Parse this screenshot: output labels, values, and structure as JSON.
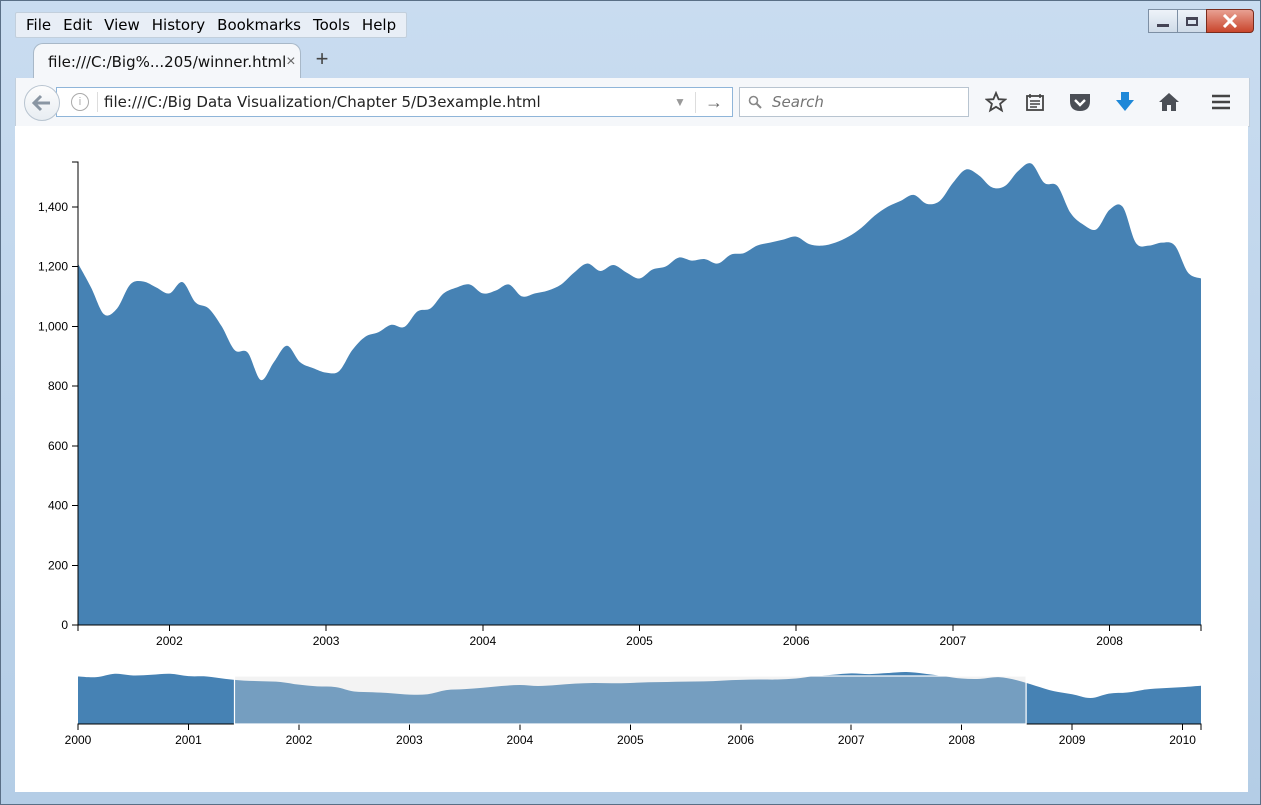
{
  "menu": [
    "File",
    "Edit",
    "View",
    "History",
    "Bookmarks",
    "Tools",
    "Help"
  ],
  "tab": {
    "title": "file:///C:/Big%...205/winner.html",
    "close": "×",
    "new": "+"
  },
  "nav": {
    "url": "file:///C:/Big Data Visualization/Chapter 5/D3example.html",
    "search_placeholder": "Search"
  },
  "colors": {
    "area": "#4682b4",
    "brush": "#d9d9d9"
  },
  "icons": [
    "back-arrow-icon",
    "info-icon",
    "dropdown-icon",
    "go-arrow-icon",
    "search-icon",
    "star-icon",
    "reading-list-icon",
    "pocket-icon",
    "download-icon",
    "home-icon",
    "menu-icon"
  ],
  "chart_data": [
    {
      "type": "area",
      "title": "",
      "xlabel": "",
      "ylabel": "",
      "xlim": [
        "2001-06",
        "2008-08"
      ],
      "ylim": [
        0,
        1550
      ],
      "y_ticks": [
        0,
        200,
        400,
        600,
        800,
        1000,
        1200,
        1400
      ],
      "y_tick_labels": [
        "0",
        "200",
        "400",
        "600",
        "800",
        "1,000",
        "1,200",
        "1,400"
      ],
      "x_tick_labels": [
        "2002",
        "2003",
        "2004",
        "2005",
        "2006",
        "2007",
        "2008"
      ],
      "x": [
        "2001-06",
        "2001-07",
        "2001-08",
        "2001-09",
        "2001-10",
        "2001-11",
        "2001-12",
        "2002-01",
        "2002-02",
        "2002-03",
        "2002-04",
        "2002-05",
        "2002-06",
        "2002-07",
        "2002-08",
        "2002-09",
        "2002-10",
        "2002-11",
        "2002-12",
        "2003-01",
        "2003-02",
        "2003-03",
        "2003-04",
        "2003-05",
        "2003-06",
        "2003-07",
        "2003-08",
        "2003-09",
        "2003-10",
        "2003-11",
        "2003-12",
        "2004-01",
        "2004-02",
        "2004-03",
        "2004-04",
        "2004-05",
        "2004-06",
        "2004-07",
        "2004-08",
        "2004-09",
        "2004-10",
        "2004-11",
        "2004-12",
        "2005-01",
        "2005-02",
        "2005-03",
        "2005-04",
        "2005-05",
        "2005-06",
        "2005-07",
        "2005-08",
        "2005-09",
        "2005-10",
        "2005-11",
        "2005-12",
        "2006-01",
        "2006-02",
        "2006-03",
        "2006-04",
        "2006-05",
        "2006-06",
        "2006-07",
        "2006-08",
        "2006-09",
        "2006-10",
        "2006-11",
        "2006-12",
        "2007-01",
        "2007-02",
        "2007-03",
        "2007-04",
        "2007-05",
        "2007-06",
        "2007-07",
        "2007-08",
        "2007-09",
        "2007-10",
        "2007-11",
        "2007-12",
        "2008-01",
        "2008-02",
        "2008-03",
        "2008-04",
        "2008-05",
        "2008-06",
        "2008-07",
        "2008-08"
      ],
      "y": [
        1210,
        1130,
        1040,
        1060,
        1140,
        1150,
        1130,
        1110,
        1148,
        1080,
        1060,
        1000,
        920,
        912,
        820,
        880,
        935,
        880,
        860,
        845,
        850,
        920,
        965,
        980,
        1005,
        998,
        1050,
        1060,
        1110,
        1130,
        1140,
        1110,
        1120,
        1140,
        1100,
        1110,
        1120,
        1140,
        1180,
        1210,
        1185,
        1205,
        1180,
        1160,
        1190,
        1200,
        1230,
        1220,
        1225,
        1210,
        1240,
        1245,
        1270,
        1280,
        1290,
        1300,
        1275,
        1270,
        1280,
        1300,
        1330,
        1370,
        1400,
        1420,
        1440,
        1410,
        1420,
        1480,
        1525,
        1505,
        1465,
        1470,
        1520,
        1545,
        1480,
        1470,
        1380,
        1340,
        1325,
        1390,
        1400,
        1280,
        1270,
        1280,
        1270,
        1180,
        1160
      ]
    },
    {
      "type": "area",
      "title": "",
      "xlabel": "",
      "ylabel": "",
      "xlim": [
        "2000-01",
        "2010-03"
      ],
      "ylim": [
        0,
        1550
      ],
      "x_tick_labels": [
        "2000",
        "2001",
        "2002",
        "2003",
        "2004",
        "2005",
        "2006",
        "2007",
        "2008",
        "2009",
        "2010"
      ],
      "brush": [
        "2001-06",
        "2008-08"
      ],
      "x": [
        "2000-01",
        "2000-03",
        "2000-05",
        "2000-07",
        "2000-09",
        "2000-11",
        "2001-01",
        "2001-03",
        "2001-05",
        "2001-07",
        "2001-09",
        "2001-11",
        "2002-01",
        "2002-03",
        "2002-05",
        "2002-07",
        "2002-09",
        "2002-11",
        "2003-01",
        "2003-03",
        "2003-05",
        "2003-07",
        "2003-09",
        "2003-11",
        "2004-01",
        "2004-03",
        "2004-05",
        "2004-07",
        "2004-09",
        "2004-11",
        "2005-01",
        "2005-03",
        "2005-05",
        "2005-07",
        "2005-09",
        "2005-11",
        "2006-01",
        "2006-03",
        "2006-05",
        "2006-07",
        "2006-09",
        "2006-11",
        "2007-01",
        "2007-03",
        "2007-05",
        "2007-07",
        "2007-09",
        "2007-11",
        "2008-01",
        "2008-03",
        "2008-05",
        "2008-07",
        "2008-09",
        "2008-11",
        "2009-01",
        "2009-03",
        "2009-05",
        "2009-07",
        "2009-09",
        "2009-11",
        "2010-01",
        "2010-03"
      ],
      "y": [
        1390,
        1370,
        1470,
        1420,
        1440,
        1470,
        1400,
        1390,
        1320,
        1270,
        1250,
        1230,
        1150,
        1100,
        1080,
        950,
        930,
        900,
        860,
        870,
        990,
        1020,
        1060,
        1110,
        1140,
        1110,
        1140,
        1180,
        1200,
        1190,
        1200,
        1220,
        1230,
        1240,
        1245,
        1270,
        1290,
        1300,
        1300,
        1330,
        1400,
        1440,
        1480,
        1460,
        1490,
        1520,
        1470,
        1400,
        1330,
        1320,
        1370,
        1280,
        1120,
        960,
        870,
        760,
        890,
        920,
        1010,
        1050,
        1080,
        1120
      ]
    }
  ]
}
